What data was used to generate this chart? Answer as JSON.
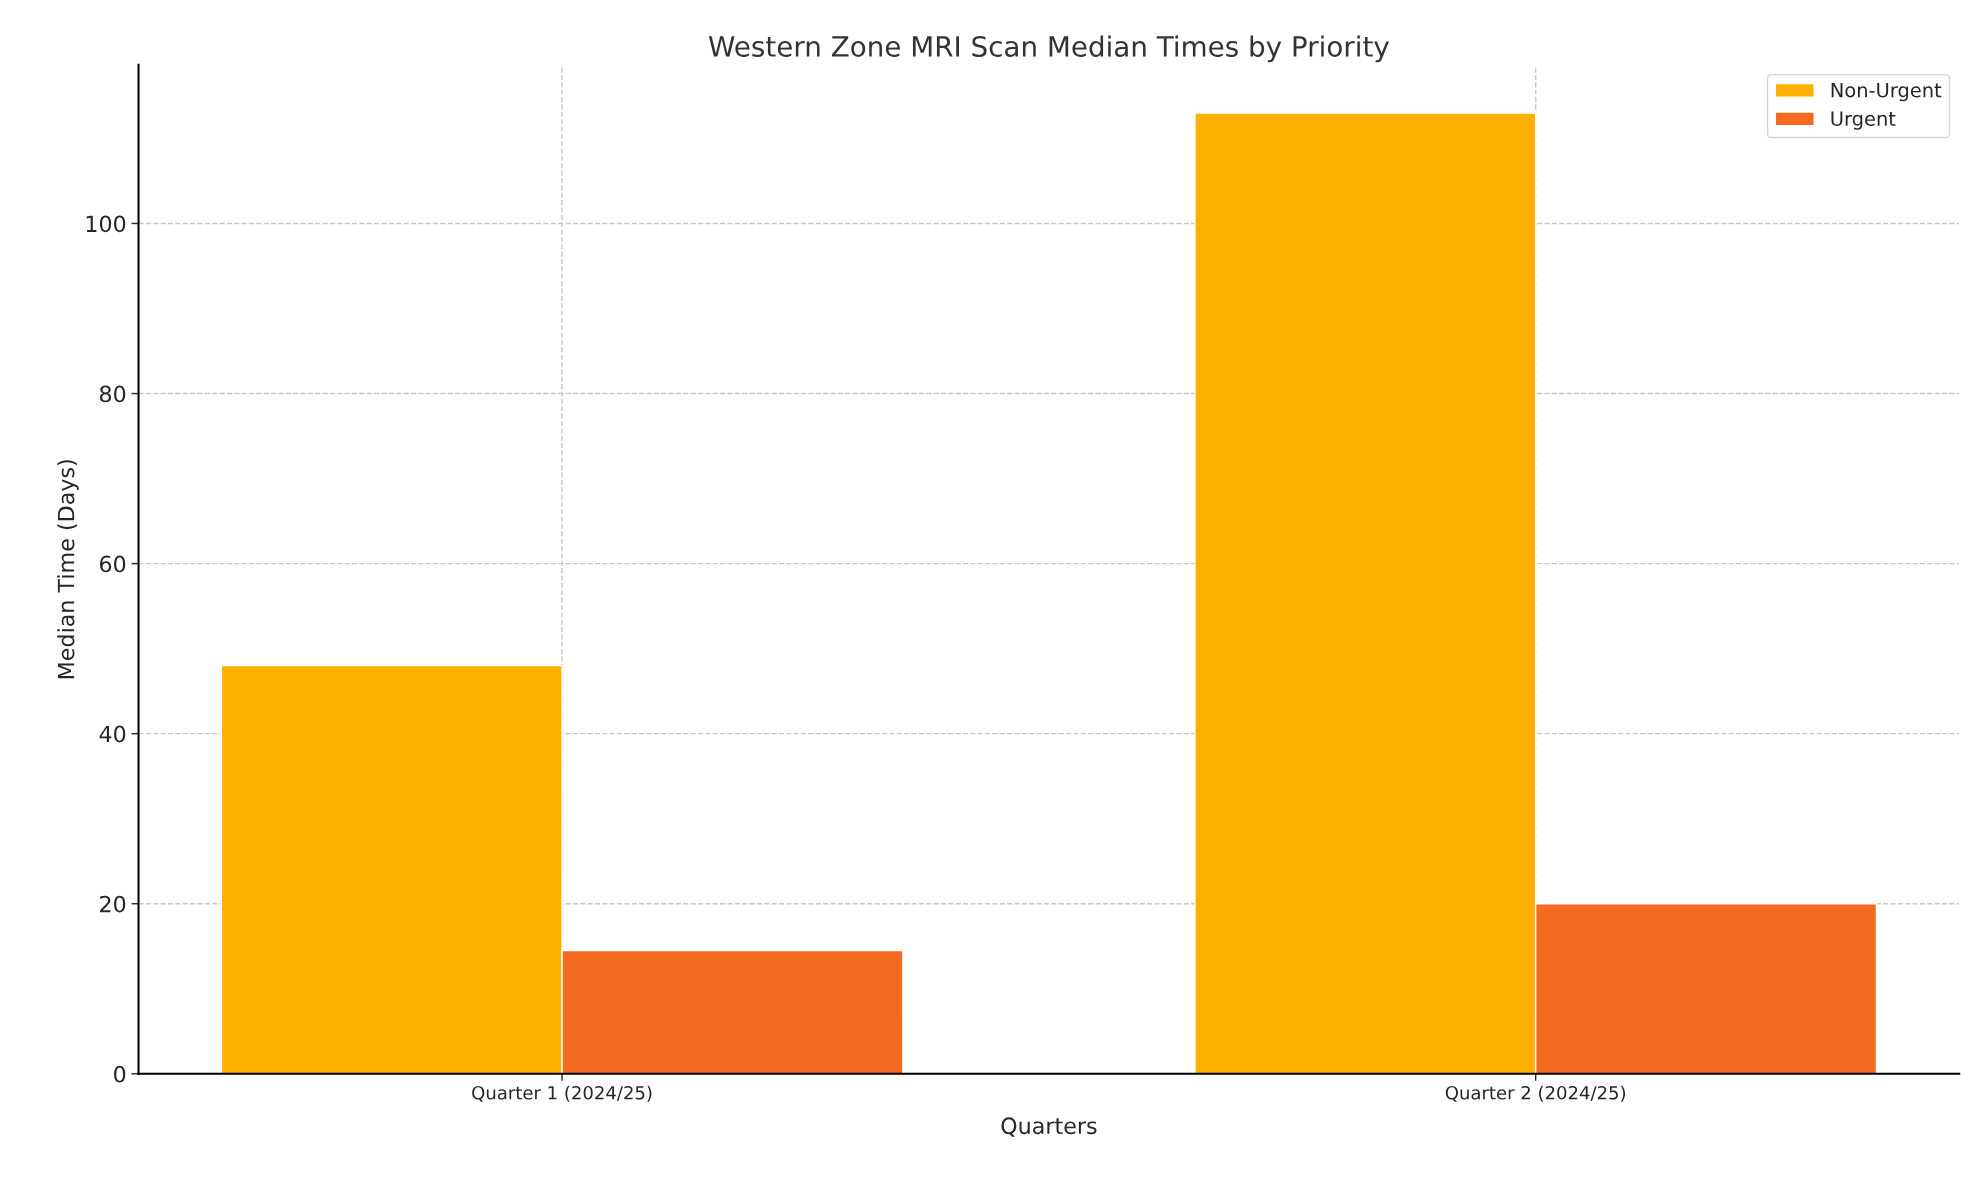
{
  "chart_data": {
    "type": "bar",
    "title": "Western Zone MRI Scan Median Times by Priority",
    "xlabel": "Quarters",
    "ylabel": "Median Time (Days)",
    "categories": [
      "Quarter 1 (2024/25)",
      "Quarter 2 (2024/25)"
    ],
    "series": [
      {
        "name": "Non-Urgent",
        "color": "#ffb000",
        "values": [
          48,
          113
        ]
      },
      {
        "name": "Urgent",
        "color": "#f46a21",
        "values": [
          14.5,
          20
        ]
      }
    ],
    "ylim": [
      0,
      118.65
    ],
    "yticks": [
      0,
      20,
      40,
      60,
      80,
      100
    ],
    "grid": true,
    "legend": "top right"
  }
}
